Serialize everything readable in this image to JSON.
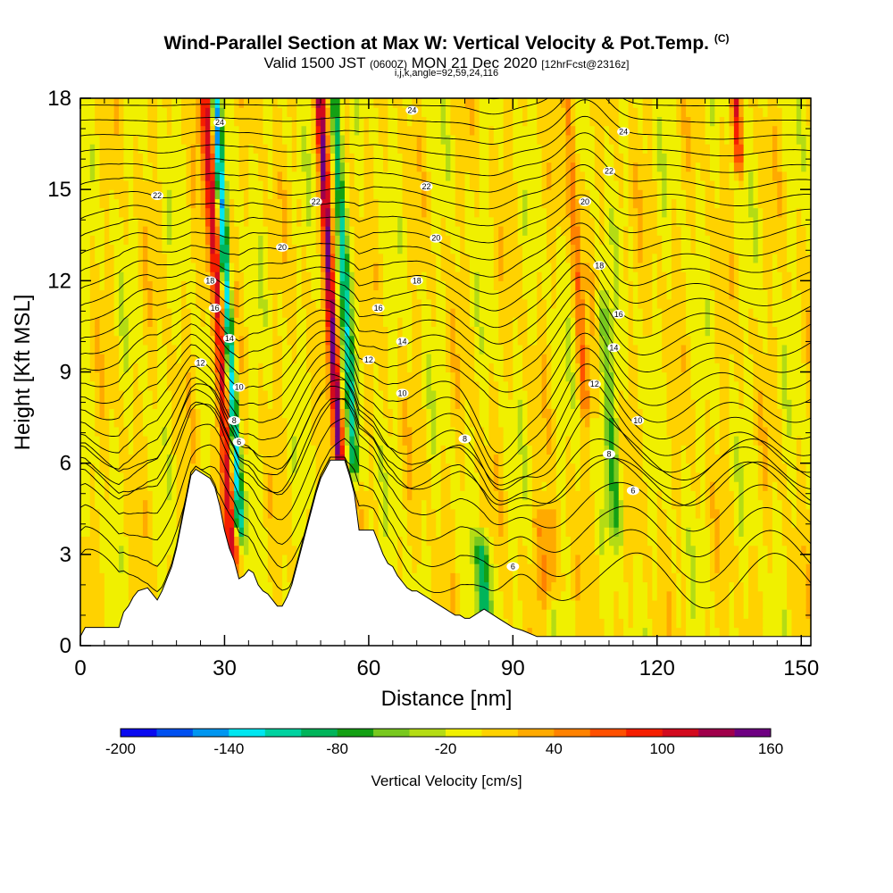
{
  "header": {
    "title": "Wind-Parallel Section at Max W: Vertical Velocity & Pot.Temp.",
    "title_mark": "(C)",
    "valid_prefix": "Valid 1500 JST",
    "valid_utc": "(0600Z)",
    "valid_date": "MON 21 Dec 2020",
    "forecast": "[12hrFcst@2316z]",
    "indices": "i,j,k,angle=92,59,24,116"
  },
  "chart_data": {
    "type": "heatmap",
    "title": "Wind-Parallel Section at Max W: Vertical Velocity & Pot.Temp.",
    "xlabel": "Distance [nm]",
    "ylabel": "Height [Kft MSL]",
    "xlim": [
      0,
      152
    ],
    "ylim": [
      0,
      18
    ],
    "xticks": [
      "0",
      "30",
      "60",
      "90",
      "120",
      "150"
    ],
    "yticks": [
      "0",
      "3",
      "6",
      "9",
      "12",
      "15",
      "18"
    ],
    "colorbar": {
      "label": "Vertical Velocity [cm/s]",
      "range": [
        -200,
        160
      ],
      "tick_labels": [
        "-200",
        "-140",
        "-80",
        "-20",
        "40",
        "100",
        "160"
      ],
      "colors": [
        "#0a0af0",
        "#0050f0",
        "#0096f0",
        "#00e6f0",
        "#00d2a0",
        "#00b45a",
        "#14a014",
        "#78c81e",
        "#b4dc14",
        "#f0f000",
        "#ffd200",
        "#ffaa00",
        "#ff8200",
        "#ff5000",
        "#f51e00",
        "#d20a1e",
        "#a0004b",
        "#6e0082"
      ]
    },
    "terrain_profile": {
      "distance_nm": [
        0,
        1,
        8,
        9,
        10,
        11,
        12,
        14,
        16,
        17,
        18,
        19,
        20,
        21,
        22,
        23,
        24,
        27,
        28,
        29,
        30,
        31,
        32,
        33,
        34,
        35,
        36,
        37,
        38,
        39,
        40,
        41,
        42,
        43,
        44,
        45,
        46,
        47,
        48,
        49,
        50,
        51,
        52,
        55,
        56,
        57,
        58,
        61,
        62,
        63,
        64,
        65,
        66,
        67,
        68,
        69,
        70,
        71,
        72,
        73,
        74,
        75,
        76,
        77,
        78,
        79,
        80,
        81,
        82,
        83,
        84,
        85,
        86,
        87,
        88,
        89,
        90,
        92,
        95,
        100,
        152
      ],
      "height_kft": [
        0.3,
        0.6,
        0.6,
        1.1,
        1.3,
        1.6,
        1.8,
        1.9,
        1.5,
        1.8,
        2.2,
        2.6,
        3.2,
        4.0,
        4.8,
        5.6,
        5.8,
        5.5,
        5.2,
        4.6,
        3.8,
        3.2,
        2.8,
        2.2,
        2.3,
        2.5,
        2.4,
        2.0,
        1.8,
        1.7,
        1.5,
        1.3,
        1.3,
        1.6,
        2.0,
        2.6,
        3.2,
        3.8,
        4.4,
        5.0,
        5.5,
        5.8,
        6.1,
        6.1,
        5.6,
        5.0,
        3.8,
        3.8,
        3.4,
        3.0,
        2.7,
        2.6,
        2.3,
        2.1,
        1.9,
        1.8,
        1.8,
        1.7,
        1.6,
        1.5,
        1.4,
        1.3,
        1.2,
        1.1,
        1.0,
        1.0,
        0.9,
        0.9,
        1.0,
        1.1,
        1.2,
        1.1,
        1.0,
        0.9,
        0.8,
        0.7,
        0.6,
        0.5,
        0.3,
        0.3,
        0.3
      ]
    },
    "updraft_plumes": [
      {
        "x0_nm": 30,
        "x1_nm": 33,
        "peak_cm_s": 110,
        "from_kft": 3,
        "to_kft": 18
      },
      {
        "x0_nm": 53,
        "x1_nm": 55,
        "peak_cm_s": 150,
        "from_kft": 6,
        "to_kft": 18
      },
      {
        "x0_nm": 104,
        "x1_nm": 106,
        "peak_cm_s": 60,
        "from_kft": 8,
        "to_kft": 18
      },
      {
        "x0_nm": 136,
        "x1_nm": 138,
        "peak_cm_s": 90,
        "from_kft": 16,
        "to_kft": 18
      },
      {
        "x0_nm": 95,
        "x1_nm": 100,
        "peak_cm_s": 45,
        "from_kft": 2,
        "to_kft": 4
      }
    ],
    "downdraft_plumes": [
      {
        "x0_nm": 32,
        "x1_nm": 34,
        "peak_cm_s": -150,
        "from_kft": 4,
        "to_kft": 18
      },
      {
        "x0_nm": 56,
        "x1_nm": 58,
        "peak_cm_s": -110,
        "from_kft": 6,
        "to_kft": 18
      },
      {
        "x0_nm": 83,
        "x1_nm": 86,
        "peak_cm_s": -90,
        "from_kft": 1,
        "to_kft": 3
      },
      {
        "x0_nm": 110,
        "x1_nm": 113,
        "peak_cm_s": -55,
        "from_kft": 4,
        "to_kft": 11
      }
    ],
    "theta_contours": {
      "levels": [
        6,
        8,
        10,
        12,
        14,
        16,
        18,
        20,
        22,
        24
      ],
      "labels": [
        {
          "text": "6",
          "x_nm": 90,
          "y_kft": 2.6
        },
        {
          "text": "6",
          "x_nm": 33,
          "y_kft": 6.7
        },
        {
          "text": "8",
          "x_nm": 32,
          "y_kft": 7.4
        },
        {
          "text": "8",
          "x_nm": 80,
          "y_kft": 6.8
        },
        {
          "text": "8",
          "x_nm": 110,
          "y_kft": 6.3
        },
        {
          "text": "6",
          "x_nm": 115,
          "y_kft": 5.1
        },
        {
          "text": "10",
          "x_nm": 33,
          "y_kft": 8.5
        },
        {
          "text": "10",
          "x_nm": 67,
          "y_kft": 8.3
        },
        {
          "text": "10",
          "x_nm": 116,
          "y_kft": 7.4
        },
        {
          "text": "12",
          "x_nm": 25,
          "y_kft": 9.3
        },
        {
          "text": "12",
          "x_nm": 60,
          "y_kft": 9.4
        },
        {
          "text": "12",
          "x_nm": 107,
          "y_kft": 8.6
        },
        {
          "text": "14",
          "x_nm": 31,
          "y_kft": 10.1
        },
        {
          "text": "14",
          "x_nm": 67,
          "y_kft": 10.0
        },
        {
          "text": "14",
          "x_nm": 111,
          "y_kft": 9.8
        },
        {
          "text": "16",
          "x_nm": 28,
          "y_kft": 11.1
        },
        {
          "text": "16",
          "x_nm": 62,
          "y_kft": 11.1
        },
        {
          "text": "16",
          "x_nm": 112,
          "y_kft": 10.9
        },
        {
          "text": "18",
          "x_nm": 27,
          "y_kft": 12.0
        },
        {
          "text": "18",
          "x_nm": 70,
          "y_kft": 12.0
        },
        {
          "text": "18",
          "x_nm": 108,
          "y_kft": 12.5
        },
        {
          "text": "20",
          "x_nm": 42,
          "y_kft": 13.1
        },
        {
          "text": "20",
          "x_nm": 74,
          "y_kft": 13.4
        },
        {
          "text": "20",
          "x_nm": 105,
          "y_kft": 14.6
        },
        {
          "text": "22",
          "x_nm": 16,
          "y_kft": 14.8
        },
        {
          "text": "22",
          "x_nm": 49,
          "y_kft": 14.6
        },
        {
          "text": "22",
          "x_nm": 72,
          "y_kft": 15.1
        },
        {
          "text": "22",
          "x_nm": 110,
          "y_kft": 15.6
        },
        {
          "text": "24",
          "x_nm": 29,
          "y_kft": 17.2
        },
        {
          "text": "24",
          "x_nm": 69,
          "y_kft": 17.6
        },
        {
          "text": "24",
          "x_nm": 113,
          "y_kft": 16.9
        }
      ]
    }
  }
}
